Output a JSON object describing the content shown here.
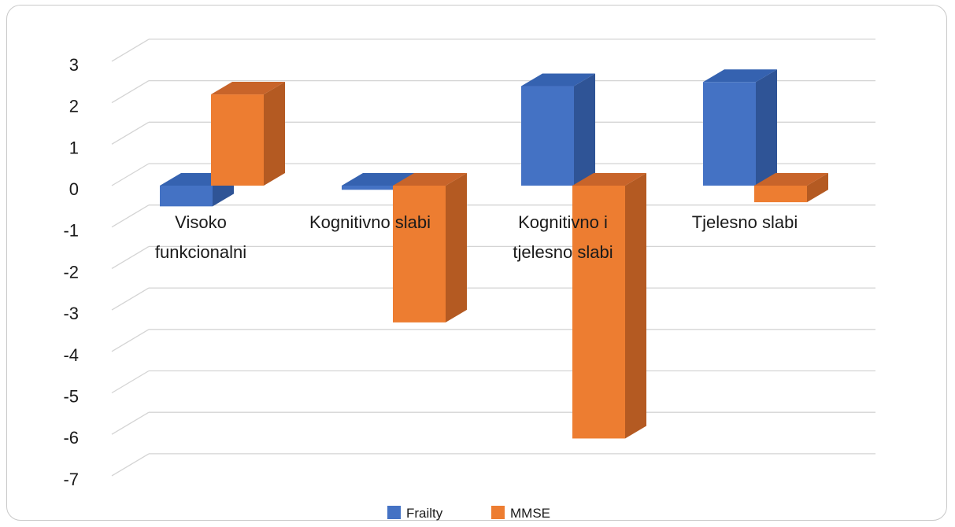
{
  "chart_data": {
    "type": "bar",
    "categories": [
      "Visoko|funkcionalni",
      "Kognitivno slabi",
      "Kognitivno i|tjelesno slabi",
      "Tjelesno slabi"
    ],
    "series": [
      {
        "name": "Frailty",
        "values": [
          -0.5,
          -0.1,
          2.4,
          2.5
        ]
      },
      {
        "name": "MMSE",
        "values": [
          2.2,
          -3.3,
          -6.1,
          -0.4
        ]
      }
    ],
    "yticks": [
      3,
      2,
      1,
      0,
      -1,
      -2,
      -3,
      -4,
      -5,
      -6,
      -7
    ],
    "ylim": [
      -7,
      3.5
    ],
    "grid": true,
    "legend": "bottom",
    "colors": {
      "Frailty": {
        "front": "#4472c4",
        "side": "#2f5496",
        "top": "#3562b0"
      },
      "MMSE": {
        "front": "#ed7d31",
        "side": "#b45a22",
        "top": "#c8642a"
      }
    }
  }
}
